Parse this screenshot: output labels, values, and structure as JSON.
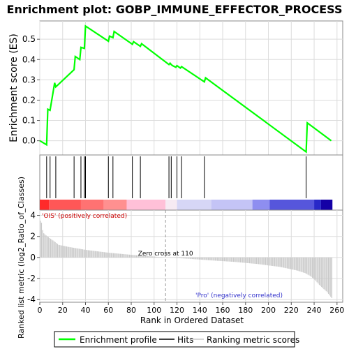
{
  "chart_data": {
    "type": "line",
    "title": "Enrichment plot: GOBP_IMMUNE_EFFECTOR_PROCESS",
    "panels": {
      "es": {
        "ylabel": "Enrichment score (ES)",
        "ylim": [
          -0.07,
          0.59
        ],
        "yticks": [
          0.0,
          0.1,
          0.2,
          0.3,
          0.4,
          0.5
        ],
        "ytick_labels": [
          "0.0",
          "0.1",
          "0.2",
          "0.3",
          "0.4",
          "0.5"
        ],
        "grid": true,
        "series": [
          {
            "name": "Enrichment profile",
            "color": "#00ff00",
            "x": [
              0,
              6,
              7,
              9,
              13,
              14,
              30,
              31,
              35,
              36,
              39,
              40,
              60,
              61,
              64,
              65,
              81,
              82,
              88,
              89,
              113,
              114,
              115,
              116,
              119,
              120,
              123,
              124,
              144,
              145,
              233,
              234,
              255
            ],
            "y": [
              0.0,
              -0.02,
              0.155,
              0.15,
              0.285,
              0.265,
              0.35,
              0.415,
              0.4,
              0.46,
              0.455,
              0.565,
              0.49,
              0.515,
              0.508,
              0.538,
              0.475,
              0.488,
              0.465,
              0.478,
              0.375,
              0.382,
              0.375,
              0.37,
              0.362,
              0.37,
              0.358,
              0.365,
              0.29,
              0.31,
              -0.055,
              0.088,
              0.0
            ]
          }
        ]
      },
      "hits": {
        "color": "#000000",
        "positions": [
          6,
          9,
          14,
          30,
          36,
          39,
          40,
          60,
          64,
          81,
          88,
          113,
          115,
          120,
          124,
          144,
          233
        ]
      },
      "heatmap_band": {
        "segments": [
          {
            "from": 0,
            "to": 8,
            "color": "#ff2a2a"
          },
          {
            "from": 8,
            "to": 36,
            "color": "#ff5757"
          },
          {
            "from": 36,
            "to": 56,
            "color": "#ff7272"
          },
          {
            "from": 56,
            "to": 76,
            "color": "#ff9090"
          },
          {
            "from": 76,
            "to": 110,
            "color": "#ffc0d8"
          },
          {
            "from": 110,
            "to": 120,
            "color": "#f6eaf3"
          },
          {
            "from": 120,
            "to": 150,
            "color": "#d6d6f6"
          },
          {
            "from": 150,
            "to": 186,
            "color": "#c4c4f6"
          },
          {
            "from": 186,
            "to": 201,
            "color": "#8e8ef0"
          },
          {
            "from": 201,
            "to": 240,
            "color": "#5656dc"
          },
          {
            "from": 240,
            "to": 246,
            "color": "#2828c8"
          },
          {
            "from": 246,
            "to": 256,
            "color": "#1400a6"
          }
        ]
      },
      "metric": {
        "ylabel": "Ranked list metric (log2_Ratio_of_Classes)",
        "xlabel": "Rank in Ordered Dataset",
        "ylim": [
          -4.25,
          4.5
        ],
        "yticks": [
          -4,
          -2,
          0,
          2,
          4
        ],
        "ytick_labels": [
          "-4",
          "-2",
          "0",
          "2",
          "4"
        ],
        "xlim": [
          0,
          265
        ],
        "xticks": [
          0,
          20,
          40,
          60,
          80,
          100,
          120,
          140,
          160,
          180,
          200,
          220,
          240,
          260
        ],
        "xtick_labels": [
          "0",
          "20",
          "40",
          "60",
          "80",
          "100",
          "120",
          "140",
          "160",
          "180",
          "200",
          "220",
          "240",
          "260"
        ],
        "rank_count": 256,
        "curve_x": [
          0,
          1,
          2,
          3,
          5,
          8,
          12,
          16,
          25,
          40,
          60,
          80,
          100,
          110,
          130,
          150,
          170,
          190,
          210,
          225,
          232,
          236,
          240,
          244,
          248,
          251,
          253,
          255
        ],
        "curve_y": [
          3.5,
          3.3,
          2.6,
          2.3,
          2.1,
          1.85,
          1.55,
          1.2,
          1.0,
          0.72,
          0.45,
          0.25,
          0.08,
          0.0,
          -0.12,
          -0.28,
          -0.42,
          -0.62,
          -0.9,
          -1.25,
          -1.5,
          -1.75,
          -2.1,
          -2.6,
          -3.0,
          -3.3,
          -3.6,
          -3.85
        ],
        "zero_cross_rank": 110,
        "zero_cross_label": "Zero cross at 110",
        "pos_label": "'OIS' (positively correlated)",
        "neg_label": "'Pro' (negatively correlated)",
        "pos_color": "#cc0000",
        "neg_color": "#3333cc"
      }
    },
    "legend": {
      "placement": "bottom",
      "items": [
        {
          "label": "Enrichment profile",
          "color": "#00ff00"
        },
        {
          "label": "Hits",
          "color": "#000000"
        },
        {
          "label": "Ranking metric scores",
          "color": "#c8c8c8"
        }
      ]
    }
  }
}
